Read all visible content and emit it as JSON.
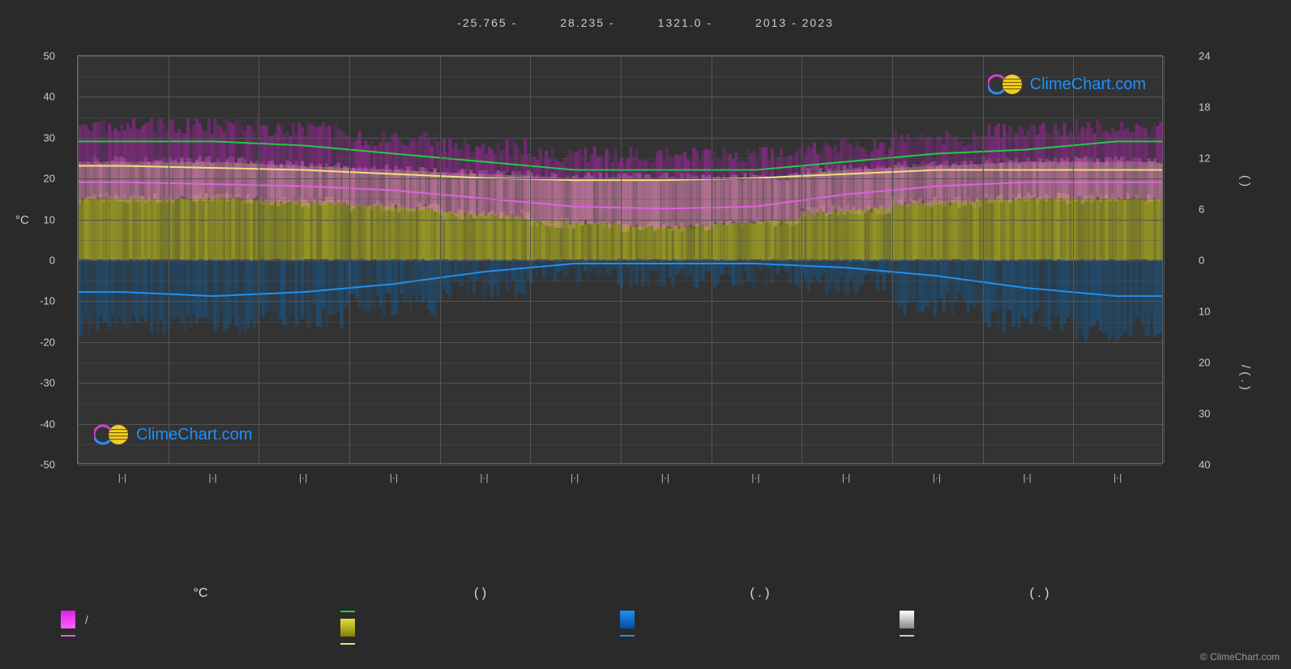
{
  "header": {
    "lat": "-25.765 -",
    "lon": "28.235 -",
    "elev": "1321.0 -",
    "years": "2013 - 2023"
  },
  "brand": {
    "name": "ClimeChart.com",
    "copyright": "© ClimeChart.com",
    "brand_color": "#1e90ff",
    "ring_color": "#d040d0",
    "sphere_color": "#f0d020"
  },
  "chart": {
    "type": "climate",
    "background": "#333333",
    "grid_color": "#555555",
    "y_left": {
      "label": "°C",
      "min": -50,
      "max": 50,
      "ticks": [
        50,
        40,
        30,
        20,
        10,
        0,
        -10,
        -20,
        -30,
        -40,
        -50
      ]
    },
    "y_right_upper": {
      "label": "(   )",
      "min": 0,
      "max": 24,
      "ticks": [
        24,
        18,
        12,
        6,
        0
      ]
    },
    "y_right_lower": {
      "label": "/   (  . )",
      "min": 0,
      "max": 40,
      "ticks": [
        10,
        20,
        30,
        40
      ]
    },
    "x_months": [
      "|·|",
      "|·|",
      "|·|",
      "|·|",
      "|·|",
      "|·|",
      "|·|",
      "|·|",
      "|·|",
      "|·|",
      "|·|",
      "|·|"
    ],
    "series": {
      "temp_max": {
        "color": "#22cc44",
        "values": [
          29,
          29,
          28,
          26,
          24,
          22,
          22,
          22,
          24,
          26,
          27,
          29
        ]
      },
      "temp_avg": {
        "color": "#f0e080",
        "values": [
          23,
          22.5,
          22,
          21,
          20,
          19.5,
          19.5,
          20,
          21,
          22,
          22,
          22
        ]
      },
      "temp_min_line": {
        "color": "#e060e0",
        "values": [
          19,
          18.5,
          18,
          17,
          15,
          13,
          12.5,
          13,
          16,
          18,
          19,
          19
        ]
      },
      "precip_line": {
        "color": "#2090f0",
        "values": [
          -8,
          -9,
          -8,
          -6,
          -3,
          -1,
          -1,
          -1,
          -2,
          -4,
          -7,
          -9
        ]
      }
    },
    "bands": {
      "magenta_top": {
        "color": "#c020c0",
        "upper": [
          32,
          32,
          31,
          29,
          27,
          25,
          25,
          25,
          27,
          29,
          31,
          32
        ],
        "lower": [
          24,
          24,
          23,
          22,
          21,
          20,
          20,
          20,
          22,
          23,
          24,
          24
        ]
      },
      "pink_mid": {
        "color": "#f090c0",
        "upper": [
          24,
          24,
          23,
          22,
          21,
          20,
          20,
          20,
          22,
          23,
          24,
          24
        ],
        "lower": [
          15,
          15,
          14,
          13,
          11,
          9,
          8,
          9,
          12,
          14,
          15,
          15
        ]
      },
      "yellow": {
        "color": "#c0c020",
        "upper": [
          15,
          15,
          14,
          13,
          11,
          9,
          8,
          9,
          12,
          14,
          15,
          15
        ],
        "lower": [
          0,
          0,
          0,
          0,
          0,
          0,
          0,
          0,
          0,
          0,
          0,
          0
        ]
      },
      "blue": {
        "color": "#1060a0",
        "upper": [
          0,
          0,
          0,
          0,
          0,
          0,
          0,
          0,
          0,
          0,
          0,
          0
        ],
        "lower": [
          -15,
          -15,
          -13,
          -10,
          -6,
          -3,
          -3,
          -3,
          -5,
          -10,
          -14,
          -16
        ]
      }
    }
  },
  "legend": {
    "headers": [
      "°C",
      "(          )",
      "(  . )",
      "(  . )"
    ],
    "col1": [
      {
        "type": "box",
        "color_top": "#e020e0",
        "color_bottom": "#ff60ff",
        "label": "/"
      },
      {
        "type": "line",
        "color": "#e060e0",
        "label": ""
      }
    ],
    "col2": [
      {
        "type": "line",
        "color": "#22cc44",
        "label": ""
      },
      {
        "type": "box",
        "color_top": "#e0e040",
        "color_bottom": "#808000",
        "label": ""
      },
      {
        "type": "line",
        "color": "#f0e080",
        "label": ""
      }
    ],
    "col3": [
      {
        "type": "box",
        "color_top": "#2090f0",
        "color_bottom": "#0050a0",
        "label": ""
      },
      {
        "type": "line",
        "color": "#2090f0",
        "label": ""
      }
    ],
    "col4": [
      {
        "type": "box",
        "color_top": "#ffffff",
        "color_bottom": "#888888",
        "label": ""
      },
      {
        "type": "line",
        "color": "#cccccc",
        "label": ""
      }
    ]
  }
}
